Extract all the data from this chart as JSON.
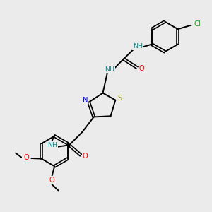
{
  "bg_color": "#ebebeb",
  "bond_color": "#000000",
  "N_color": "#0000ff",
  "O_color": "#ff0000",
  "S_color": "#888800",
  "Cl_color": "#00aa00",
  "H_color": "#008888",
  "figsize": [
    3.0,
    3.0
  ],
  "dpi": 100,
  "xlim": [
    0,
    10
  ],
  "ylim": [
    0,
    10
  ]
}
